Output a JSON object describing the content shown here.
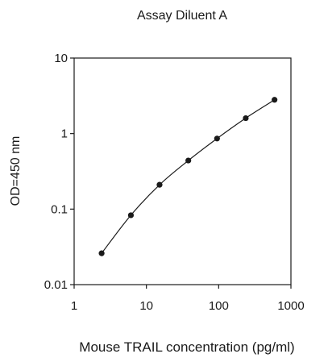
{
  "chart_data": {
    "type": "line",
    "title": "Assay Diluent A",
    "xlabel": "Mouse TRAIL concentration (pg/ml)",
    "ylabel": "OD=450 nm",
    "xscale": "log",
    "yscale": "log",
    "xlim": [
      1,
      1000
    ],
    "ylim": [
      0.01,
      10
    ],
    "xticks": [
      "1",
      "10",
      "100",
      "1000"
    ],
    "yticks": [
      "0.01",
      "0.1",
      "1",
      "10"
    ],
    "grid": false,
    "legend": "none",
    "marker": "filled-circle",
    "line_color": "#1a1a1a",
    "series": [
      {
        "x": [
          2.4,
          6.1,
          15.2,
          38.0,
          95.0,
          237.0,
          593.0
        ],
        "y": [
          0.026,
          0.083,
          0.21,
          0.44,
          0.86,
          1.6,
          2.8
        ]
      }
    ]
  }
}
